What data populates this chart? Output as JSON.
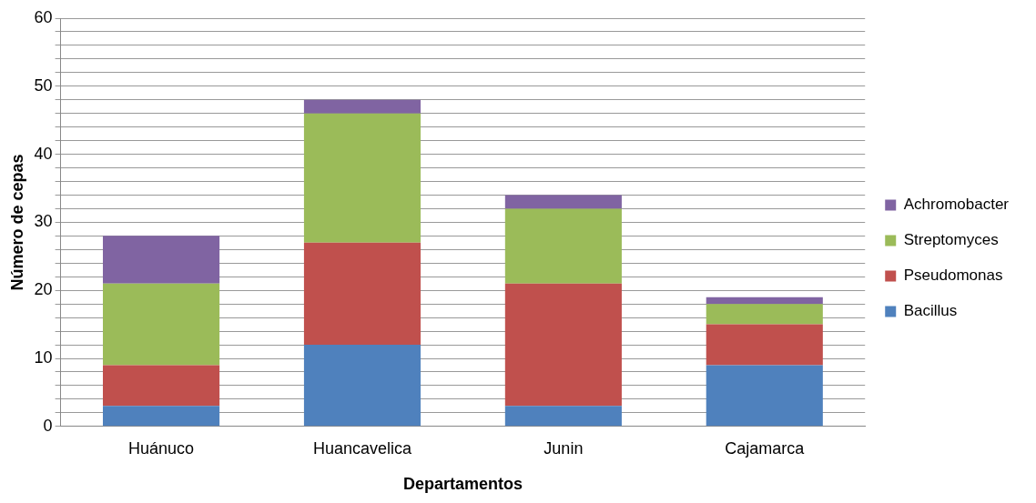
{
  "chart_data": {
    "type": "bar",
    "stacked": true,
    "xlabel": "Departamentos",
    "ylabel": "Número de cepas",
    "categories": [
      "Huánuco",
      "Huancavelica",
      "Junin",
      "Cajamarca"
    ],
    "series": [
      {
        "name": "Bacillus",
        "color": "#4f81bd",
        "values": [
          3,
          12,
          3,
          9
        ]
      },
      {
        "name": "Pseudomonas",
        "color": "#c0504d",
        "values": [
          6,
          15,
          18,
          6
        ]
      },
      {
        "name": "Streptomyces",
        "color": "#9bbb59",
        "values": [
          12,
          19,
          11,
          3
        ]
      },
      {
        "name": "Achromobacter",
        "color": "#8064a2",
        "values": [
          7,
          2,
          2,
          1
        ]
      }
    ],
    "ylim": [
      0,
      60
    ],
    "yticks": [
      0,
      {
        "value": 2,
        "label": null
      },
      {
        "value": 4,
        "label": null
      },
      {
        "value": 6,
        "label": null
      },
      {
        "value": 8,
        "label": null
      },
      10,
      {
        "value": 12,
        "label": null
      },
      {
        "value": 14,
        "label": null
      },
      {
        "value": 16,
        "label": null
      },
      {
        "value": 18,
        "label": null
      },
      20,
      {
        "value": 22,
        "label": null
      },
      {
        "value": 24,
        "label": null
      },
      {
        "value": 26,
        "label": null
      },
      {
        "value": 28,
        "label": null
      },
      30,
      {
        "value": 32,
        "label": null
      },
      {
        "value": 34,
        "label": null
      },
      {
        "value": 36,
        "label": null
      },
      {
        "value": 38,
        "label": null
      },
      40,
      {
        "value": 42,
        "label": null
      },
      {
        "value": 44,
        "label": null
      },
      {
        "value": 46,
        "label": null
      },
      {
        "value": 48,
        "label": null
      },
      50,
      {
        "value": 52,
        "label": null
      },
      {
        "value": 54,
        "label": null
      },
      {
        "value": 56,
        "label": null
      },
      {
        "value": 58,
        "label": null
      },
      60
    ],
    "grid": "y",
    "legend": "right"
  }
}
